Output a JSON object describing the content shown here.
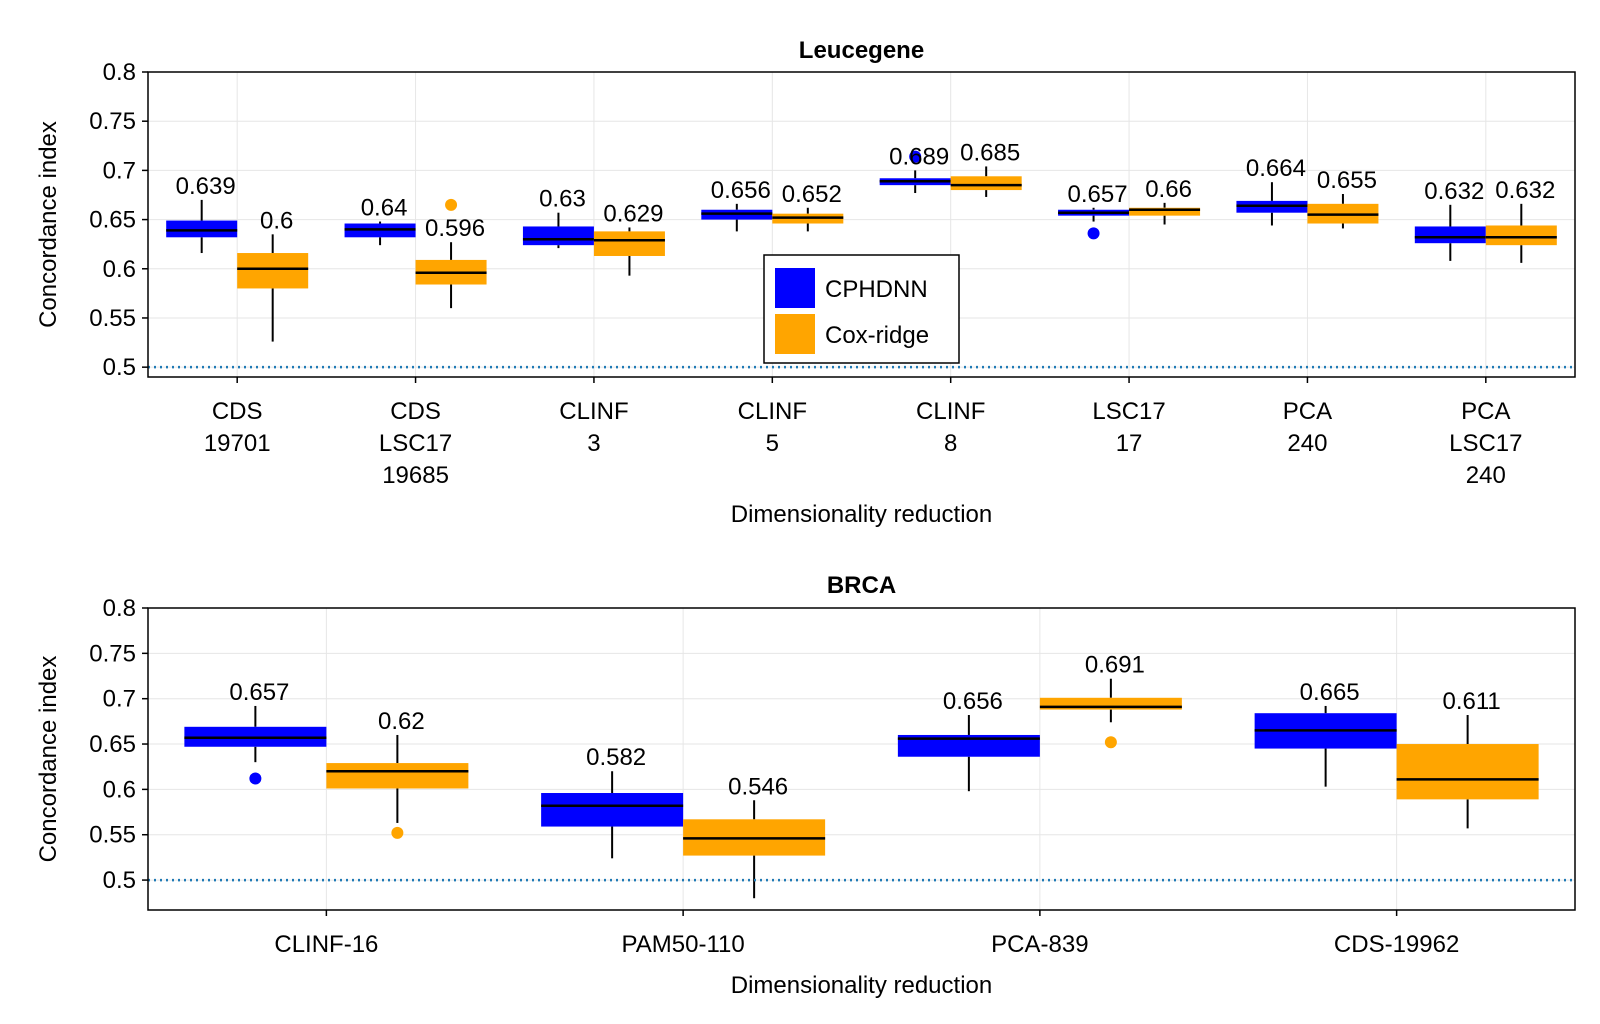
{
  "legend": {
    "entries": [
      {
        "label": "CPHDNN",
        "color": "#0000ff"
      },
      {
        "label": "Cox-ridge",
        "color": "#ffa500"
      }
    ],
    "placement": "center"
  },
  "chart_data": [
    {
      "type": "box",
      "title": "Leucegene",
      "xlabel": "Dimensionality reduction",
      "ylabel": "Concordance index",
      "ylim": [
        0.49,
        0.8
      ],
      "yticks": [
        "0.5",
        "0.55",
        "0.6",
        "0.65",
        "0.7",
        "0.75",
        "0.8"
      ],
      "ytick_values": [
        0.5,
        0.55,
        0.6,
        0.65,
        0.7,
        0.75,
        0.8
      ],
      "reference_line": 0.5,
      "grid": true,
      "categories": [
        [
          "CDS",
          "19701"
        ],
        [
          "CDS",
          "LSC17",
          "19685"
        ],
        [
          "CLINF",
          "3"
        ],
        [
          "CLINF",
          "5"
        ],
        [
          "CLINF",
          "8"
        ],
        [
          "LSC17",
          "17"
        ],
        [
          "PCA",
          "240"
        ],
        [
          "PCA",
          "LSC17",
          "240"
        ]
      ],
      "series": [
        {
          "name": "CPHDNN",
          "color": "#0000ff",
          "boxes": [
            {
              "median": 0.639,
              "q1": 0.632,
              "q3": 0.649,
              "wlo": 0.616,
              "whi": 0.67,
              "outliers": [],
              "label": "0.639"
            },
            {
              "median": 0.64,
              "q1": 0.632,
              "q3": 0.646,
              "wlo": 0.624,
              "whi": 0.648,
              "outliers": [],
              "label": "0.64"
            },
            {
              "median": 0.63,
              "q1": 0.624,
              "q3": 0.643,
              "wlo": 0.621,
              "whi": 0.657,
              "outliers": [],
              "label": "0.63"
            },
            {
              "median": 0.656,
              "q1": 0.65,
              "q3": 0.66,
              "wlo": 0.638,
              "whi": 0.666,
              "outliers": [],
              "label": "0.656"
            },
            {
              "median": 0.689,
              "q1": 0.685,
              "q3": 0.692,
              "wlo": 0.677,
              "whi": 0.7,
              "outliers": [
                0.714
              ],
              "label": "0.689"
            },
            {
              "median": 0.657,
              "q1": 0.654,
              "q3": 0.66,
              "wlo": 0.648,
              "whi": 0.662,
              "outliers": [
                0.636
              ],
              "label": "0.657"
            },
            {
              "median": 0.664,
              "q1": 0.657,
              "q3": 0.669,
              "wlo": 0.644,
              "whi": 0.688,
              "outliers": [],
              "label": "0.664"
            },
            {
              "median": 0.632,
              "q1": 0.626,
              "q3": 0.643,
              "wlo": 0.608,
              "whi": 0.665,
              "outliers": [],
              "label": "0.632"
            }
          ]
        },
        {
          "name": "Cox-ridge",
          "color": "#ffa500",
          "boxes": [
            {
              "median": 0.6,
              "q1": 0.58,
              "q3": 0.616,
              "wlo": 0.526,
              "whi": 0.635,
              "outliers": [],
              "label": "0.6"
            },
            {
              "median": 0.596,
              "q1": 0.584,
              "q3": 0.609,
              "wlo": 0.56,
              "whi": 0.627,
              "outliers": [
                0.665
              ],
              "label": "0.596"
            },
            {
              "median": 0.629,
              "q1": 0.613,
              "q3": 0.638,
              "wlo": 0.593,
              "whi": 0.642,
              "outliers": [],
              "label": "0.629"
            },
            {
              "median": 0.652,
              "q1": 0.646,
              "q3": 0.656,
              "wlo": 0.638,
              "whi": 0.662,
              "outliers": [],
              "label": "0.652"
            },
            {
              "median": 0.685,
              "q1": 0.68,
              "q3": 0.694,
              "wlo": 0.673,
              "whi": 0.704,
              "outliers": [],
              "label": "0.685"
            },
            {
              "median": 0.66,
              "q1": 0.654,
              "q3": 0.662,
              "wlo": 0.645,
              "whi": 0.667,
              "outliers": [],
              "label": "0.66"
            },
            {
              "median": 0.655,
              "q1": 0.646,
              "q3": 0.666,
              "wlo": 0.641,
              "whi": 0.676,
              "outliers": [],
              "label": "0.655"
            },
            {
              "median": 0.632,
              "q1": 0.624,
              "q3": 0.644,
              "wlo": 0.606,
              "whi": 0.666,
              "outliers": [],
              "label": "0.632"
            }
          ]
        }
      ]
    },
    {
      "type": "box",
      "title": "BRCA",
      "xlabel": "Dimensionality reduction",
      "ylabel": "Concordance index",
      "ylim": [
        0.467,
        0.8
      ],
      "yticks": [
        "0.5",
        "0.55",
        "0.6",
        "0.65",
        "0.7",
        "0.75",
        "0.8"
      ],
      "ytick_values": [
        0.5,
        0.55,
        0.6,
        0.65,
        0.7,
        0.75,
        0.8
      ],
      "reference_line": 0.5,
      "grid": true,
      "categories": [
        [
          "CLINF-16"
        ],
        [
          "PAM50-110"
        ],
        [
          "PCA-839"
        ],
        [
          "CDS-19962"
        ]
      ],
      "series": [
        {
          "name": "CPHDNN",
          "color": "#0000ff",
          "boxes": [
            {
              "median": 0.657,
              "q1": 0.647,
              "q3": 0.669,
              "wlo": 0.63,
              "whi": 0.692,
              "outliers": [
                0.612
              ],
              "label": "0.657"
            },
            {
              "median": 0.582,
              "q1": 0.559,
              "q3": 0.596,
              "wlo": 0.524,
              "whi": 0.62,
              "outliers": [],
              "label": "0.582"
            },
            {
              "median": 0.656,
              "q1": 0.636,
              "q3": 0.66,
              "wlo": 0.598,
              "whi": 0.682,
              "outliers": [],
              "label": "0.656"
            },
            {
              "median": 0.665,
              "q1": 0.645,
              "q3": 0.684,
              "wlo": 0.603,
              "whi": 0.692,
              "outliers": [],
              "label": "0.665"
            }
          ]
        },
        {
          "name": "Cox-ridge",
          "color": "#ffa500",
          "boxes": [
            {
              "median": 0.62,
              "q1": 0.601,
              "q3": 0.629,
              "wlo": 0.563,
              "whi": 0.66,
              "outliers": [
                0.552
              ],
              "label": "0.62"
            },
            {
              "median": 0.546,
              "q1": 0.527,
              "q3": 0.567,
              "wlo": 0.48,
              "whi": 0.588,
              "outliers": [],
              "label": "0.546"
            },
            {
              "median": 0.691,
              "q1": 0.688,
              "q3": 0.701,
              "wlo": 0.674,
              "whi": 0.722,
              "outliers": [
                0.652
              ],
              "label": "0.691"
            },
            {
              "median": 0.611,
              "q1": 0.589,
              "q3": 0.65,
              "wlo": 0.557,
              "whi": 0.682,
              "outliers": [],
              "label": "0.611"
            }
          ]
        }
      ]
    }
  ]
}
